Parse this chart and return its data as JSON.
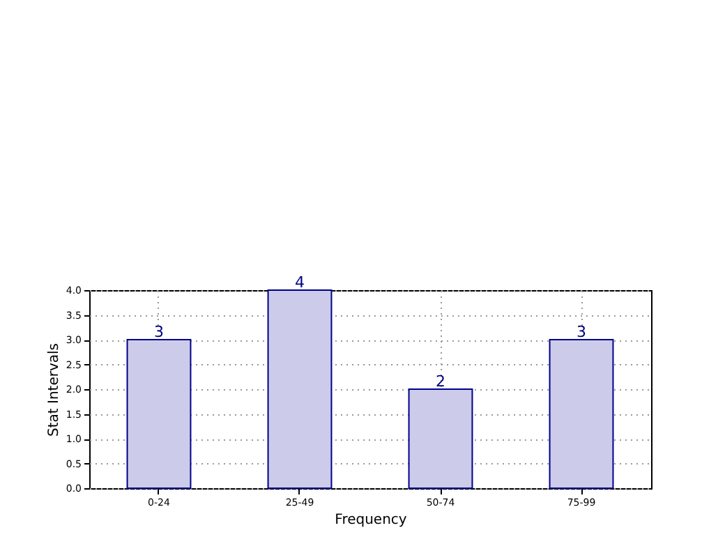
{
  "chart_data": {
    "type": "bar",
    "xlabel": "Frequency",
    "ylabel": "Stat Intervals",
    "categories": [
      "0-24",
      "25-49",
      "50-74",
      "75-99"
    ],
    "values": [
      3,
      4,
      2,
      3
    ],
    "color": "#ccccea",
    "ylim": [
      0,
      4
    ],
    "yticks": [
      {
        "value": 0,
        "label": "0.0"
      },
      0.5,
      {
        "value": 1,
        "label": "1.0"
      },
      1.5,
      {
        "value": 2,
        "label": "2.0"
      },
      2.5,
      {
        "value": 3,
        "label": "3.0"
      },
      3.5,
      {
        "value": 4,
        "label": "4.0"
      }
    ],
    "grid": true,
    "data_labels": true
  }
}
